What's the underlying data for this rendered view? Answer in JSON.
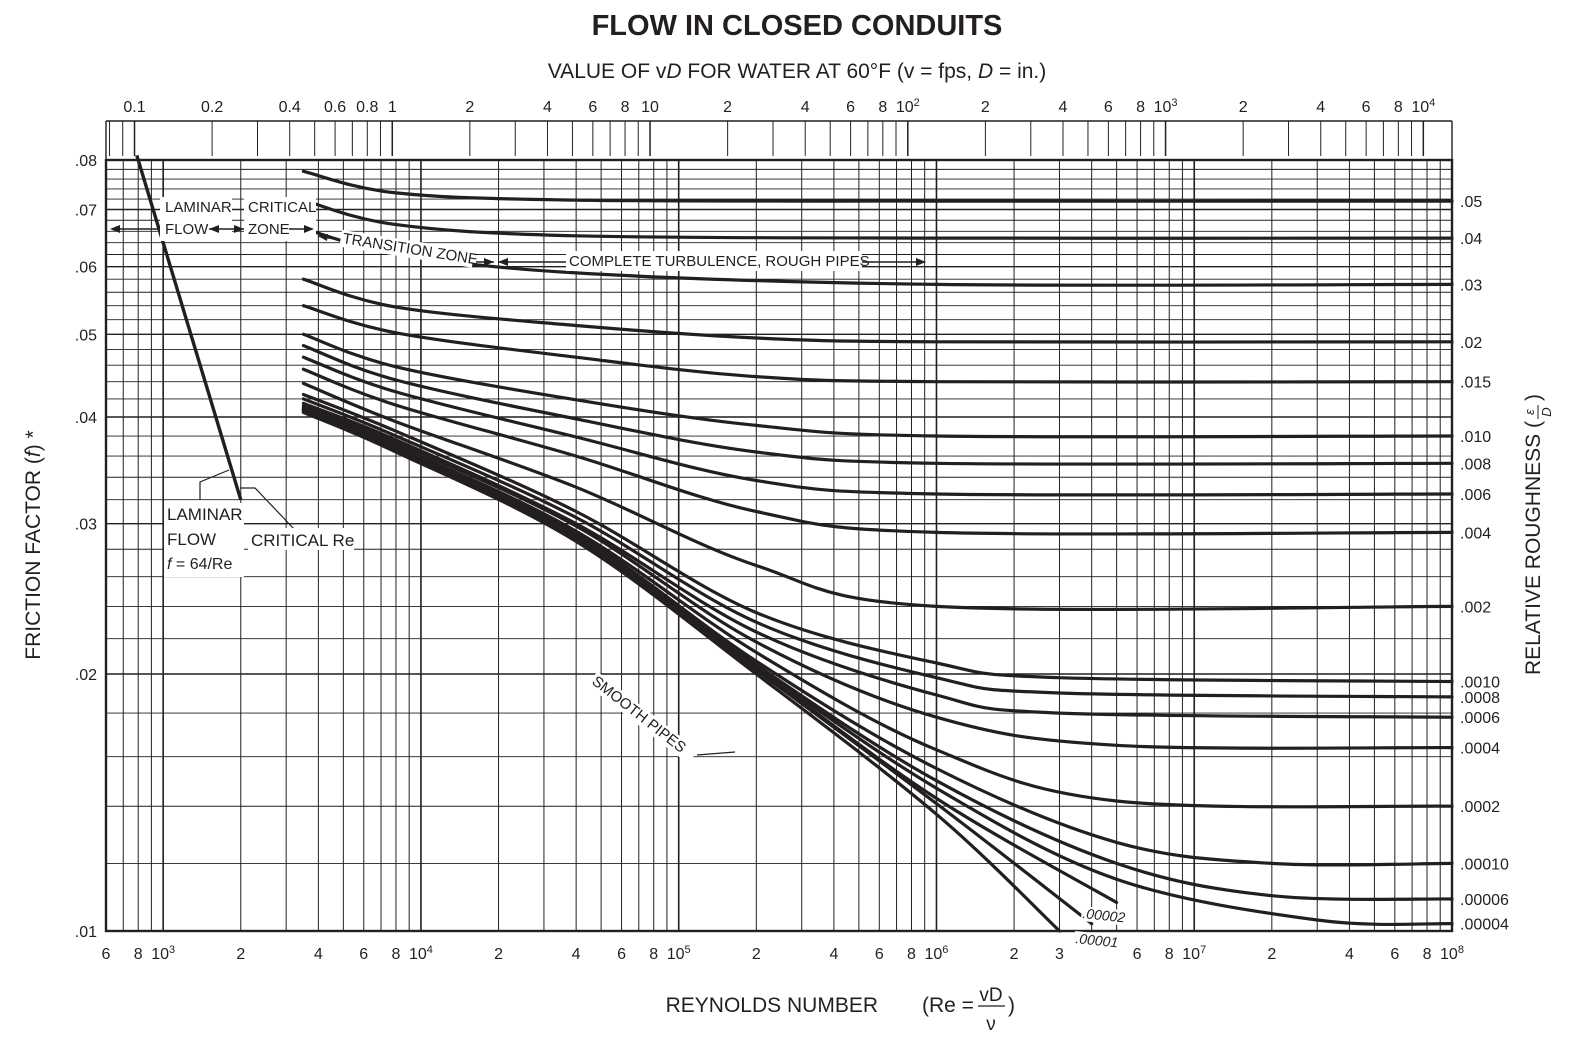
{
  "chart_data": {
    "type": "line",
    "title": "FLOW IN CLOSED CONDUITS",
    "subtitle": {
      "prefix": "VALUE OF ",
      "v": "v",
      "d": "D",
      "mid": " FOR WATER AT 60°F (v = fps, ",
      "d2": "D",
      "suffix": " = in.)"
    },
    "xlabel": {
      "text": "REYNOLDS NUMBER",
      "formula_prefix": "(Re =",
      "formula_num": "vD",
      "formula_den": "ν",
      "formula_suffix": ")"
    },
    "ylabel": {
      "text": "FRICTION FACTOR (",
      "f": "f",
      "tail": ") *"
    },
    "y2label": {
      "text": "RELATIVE ROUGHNESS (",
      "num": "ε",
      "den": "D",
      "tail": ")"
    },
    "x_scale": "log",
    "y_scale": "log",
    "xlim": [
      600,
      100000000
    ],
    "ylim": [
      0.01,
      0.08
    ],
    "grid": true,
    "x_ticks": [
      {
        "value": 600,
        "label": "6"
      },
      {
        "value": 800,
        "label": "8"
      },
      {
        "value": 1000,
        "label": "10",
        "sup": "3"
      },
      {
        "value": 2000,
        "label": "2"
      },
      {
        "value": 4000,
        "label": "4"
      },
      {
        "value": 6000,
        "label": "6"
      },
      {
        "value": 8000,
        "label": "8"
      },
      {
        "value": 10000,
        "label": "10",
        "sup": "4"
      },
      {
        "value": 20000,
        "label": "2"
      },
      {
        "value": 40000,
        "label": "4"
      },
      {
        "value": 60000,
        "label": "6"
      },
      {
        "value": 80000,
        "label": "8"
      },
      {
        "value": 100000,
        "label": "10",
        "sup": "5"
      },
      {
        "value": 200000,
        "label": "2"
      },
      {
        "value": 400000,
        "label": "4"
      },
      {
        "value": 600000,
        "label": "6"
      },
      {
        "value": 800000,
        "label": "8"
      },
      {
        "value": 1000000,
        "label": "10",
        "sup": "6"
      },
      {
        "value": 2000000,
        "label": "2"
      },
      {
        "value": 3000000,
        "label": "3"
      },
      {
        "value": 6000000,
        "label": "6"
      },
      {
        "value": 8000000,
        "label": "8"
      },
      {
        "value": 10000000,
        "label": "10",
        "sup": "7"
      },
      {
        "value": 20000000,
        "label": "2"
      },
      {
        "value": 40000000,
        "label": "4"
      },
      {
        "value": 60000000,
        "label": "6"
      },
      {
        "value": 80000000,
        "label": "8"
      },
      {
        "value": 100000000,
        "label": "10",
        "sup": "8"
      }
    ],
    "y_ticks": [
      {
        "value": 0.08,
        "label": ".08"
      },
      {
        "value": 0.07,
        "label": ".07"
      },
      {
        "value": 0.06,
        "label": ".06"
      },
      {
        "value": 0.05,
        "label": ".05"
      },
      {
        "value": 0.04,
        "label": ".04"
      },
      {
        "value": 0.03,
        "label": ".03"
      },
      {
        "value": 0.02,
        "label": ".02"
      },
      {
        "value": 0.01,
        "label": ".01"
      }
    ],
    "top_axis": {
      "ticks": [
        {
          "value": 0.1,
          "label": "0.1"
        },
        {
          "value": 0.2,
          "label": "0.2"
        },
        {
          "value": 0.4,
          "label": "0.4"
        },
        {
          "value": 0.6,
          "label": "0.6"
        },
        {
          "value": 0.8,
          "label": "0.8"
        },
        {
          "value": 1,
          "label": "1"
        },
        {
          "value": 2,
          "label": "2"
        },
        {
          "value": 4,
          "label": "4"
        },
        {
          "value": 6,
          "label": "6"
        },
        {
          "value": 8,
          "label": "8"
        },
        {
          "value": 10,
          "label": "10"
        },
        {
          "value": 20,
          "label": "2"
        },
        {
          "value": 40,
          "label": "4"
        },
        {
          "value": 60,
          "label": "6"
        },
        {
          "value": 80,
          "label": "8"
        },
        {
          "value": 100,
          "label": "10",
          "sup": "2"
        },
        {
          "value": 200,
          "label": "2"
        },
        {
          "value": 400,
          "label": "4"
        },
        {
          "value": 600,
          "label": "6"
        },
        {
          "value": 800,
          "label": "8"
        },
        {
          "value": 1000,
          "label": "10",
          "sup": "3"
        },
        {
          "value": 2000,
          "label": "2"
        },
        {
          "value": 4000,
          "label": "4"
        },
        {
          "value": 6000,
          "label": "6"
        },
        {
          "value": 8000,
          "label": "8"
        },
        {
          "value": 10000,
          "label": "10",
          "sup": "4"
        }
      ]
    },
    "laminar_line": {
      "x": [
        1000,
        2000
      ],
      "y": [
        0.064,
        0.032
      ],
      "equation": "f = 64/Re"
    },
    "series": [
      {
        "roughness": 0.05,
        "label": ".05",
        "x": [
          3500,
          8000,
          40000,
          1000000,
          100000000
        ],
        "y": [
          0.0776,
          0.0732,
          0.0718,
          0.0716,
          0.0716
        ]
      },
      {
        "roughness": 0.04,
        "label": ".04",
        "x": [
          3500,
          8000,
          40000,
          1000000,
          100000000
        ],
        "y": [
          0.0718,
          0.0672,
          0.0652,
          0.0648,
          0.0648
        ]
      },
      {
        "roughness": 0.03,
        "label": ".03",
        "x": [
          3500,
          8000,
          40000,
          1000000,
          100000000
        ],
        "y": [
          0.0665,
          0.0622,
          0.059,
          0.0572,
          0.0572
        ]
      },
      {
        "roughness": 0.02,
        "label": ".02",
        "x": [
          3500,
          8000,
          40000,
          200000,
          1000000,
          100000000
        ],
        "y": [
          0.058,
          0.0538,
          0.0512,
          0.0495,
          0.049,
          0.049
        ]
      },
      {
        "roughness": 0.015,
        "label": ".015",
        "x": [
          3500,
          8000,
          40000,
          200000,
          1000000,
          100000000
        ],
        "y": [
          0.054,
          0.0502,
          0.047,
          0.0446,
          0.044,
          0.044
        ]
      },
      {
        "roughness": 0.01,
        "label": ".010",
        "x": [
          3500,
          8000,
          40000,
          200000,
          1000000,
          100000000
        ],
        "y": [
          0.05,
          0.0458,
          0.0419,
          0.0391,
          0.038,
          0.038
        ]
      },
      {
        "roughness": 0.008,
        "label": ".008",
        "x": [
          3500,
          8000,
          40000,
          200000,
          1000000,
          100000000
        ],
        "y": [
          0.0485,
          0.0442,
          0.0398,
          0.0364,
          0.0353,
          0.0353
        ]
      },
      {
        "roughness": 0.006,
        "label": ".006",
        "x": [
          3500,
          8000,
          40000,
          200000,
          1000000,
          100000000
        ],
        "y": [
          0.047,
          0.0428,
          0.0379,
          0.0337,
          0.0325,
          0.0325
        ]
      },
      {
        "roughness": 0.004,
        "label": ".004",
        "x": [
          3500,
          8000,
          40000,
          200000,
          1000000,
          100000000
        ],
        "y": [
          0.0455,
          0.0413,
          0.036,
          0.031,
          0.0293,
          0.0293
        ]
      },
      {
        "roughness": 0.002,
        "label": ".002",
        "x": [
          3500,
          8000,
          40000,
          200000,
          1000000,
          100000000
        ],
        "y": [
          0.0438,
          0.0395,
          0.0331,
          0.0268,
          0.024,
          0.024
        ]
      },
      {
        "roughness": 0.001,
        "label": ".0010",
        "x": [
          3500,
          8000,
          40000,
          200000,
          1000000,
          3000000,
          100000000
        ],
        "y": [
          0.0425,
          0.0385,
          0.031,
          0.0236,
          0.0206,
          0.0198,
          0.0196
        ]
      },
      {
        "roughness": 0.0008,
        "label": ".0008",
        "x": [
          3500,
          8000,
          40000,
          200000,
          1000000,
          3000000,
          100000000
        ],
        "y": [
          0.042,
          0.038,
          0.0305,
          0.023,
          0.0198,
          0.019,
          0.0188
        ]
      },
      {
        "roughness": 0.0006,
        "label": ".0006",
        "x": [
          3500,
          8000,
          40000,
          200000,
          1000000,
          3000000,
          100000000
        ],
        "y": [
          0.0415,
          0.0376,
          0.03,
          0.0224,
          0.0189,
          0.018,
          0.0178
        ]
      },
      {
        "roughness": 0.0004,
        "label": ".0004",
        "x": [
          3500,
          8000,
          40000,
          200000,
          1000000,
          5000000,
          100000000
        ],
        "y": [
          0.0412,
          0.0373,
          0.0298,
          0.0218,
          0.0178,
          0.0165,
          0.0164
        ]
      },
      {
        "roughness": 0.0002,
        "label": ".0002",
        "x": [
          3500,
          8000,
          40000,
          200000,
          1000000,
          5000000,
          100000000
        ],
        "y": [
          0.041,
          0.037,
          0.0294,
          0.0212,
          0.0163,
          0.0142,
          0.014
        ]
      },
      {
        "roughness": 0.0001,
        "label": ".00010",
        "x": [
          3500,
          8000,
          40000,
          200000,
          1000000,
          5000000,
          20000000,
          100000000
        ],
        "y": [
          0.0409,
          0.0369,
          0.0292,
          0.0207,
          0.0155,
          0.0127,
          0.012,
          0.012
        ]
      },
      {
        "roughness": 6e-05,
        "label": ".00006",
        "x": [
          3500,
          8000,
          40000,
          200000,
          1000000,
          5000000,
          20000000,
          100000000
        ],
        "y": [
          0.0408,
          0.0368,
          0.0291,
          0.0205,
          0.015,
          0.012,
          0.011,
          0.0109
        ]
      },
      {
        "roughness": 4e-05,
        "label": ".00004",
        "x": [
          3500,
          8000,
          40000,
          200000,
          1000000,
          5000000,
          30000000,
          100000000
        ],
        "y": [
          0.0408,
          0.0367,
          0.029,
          0.0204,
          0.0147,
          0.0115,
          0.0103,
          0.0102
        ]
      },
      {
        "roughness": 2e-05,
        "label": ".00002",
        "x": [
          3500,
          8000,
          40000,
          200000,
          1000000,
          5000000
        ],
        "y": [
          0.0407,
          0.0366,
          0.0289,
          0.0203,
          0.0143,
          0.0108
        ]
      },
      {
        "roughness": 1e-05,
        "label": ".00001",
        "x": [
          3500,
          8000,
          40000,
          200000,
          1000000,
          4000000
        ],
        "y": [
          0.0406,
          0.0365,
          0.0288,
          0.0202,
          0.0141,
          0.0102
        ]
      },
      {
        "roughness": 0,
        "label": "SMOOTH PIPES",
        "x": [
          3500,
          8000,
          40000,
          200000,
          1000000,
          3000000
        ],
        "y": [
          0.0405,
          0.0364,
          0.0286,
          0.02,
          0.0137,
          0.01
        ]
      }
    ],
    "annotations": {
      "laminar_zone": [
        "LAMINAR",
        "FLOW"
      ],
      "critical_zone": [
        "CRITICAL",
        "ZONE"
      ],
      "transition_zone": "TRANSITION ZONE",
      "complete_turbulence": "COMPLETE TURBULENCE, ROUGH PIPES",
      "laminar_flow_label": [
        "LAMINAR",
        "FLOW"
      ],
      "laminar_equation": {
        "f": "f",
        "rest": " = 64/Re"
      },
      "critical_re": "CRITICAL Re",
      "smooth_pipes": "SMOOTH PIPES",
      "rel_00002": ".00002",
      "rel_00001": ".00001"
    }
  }
}
